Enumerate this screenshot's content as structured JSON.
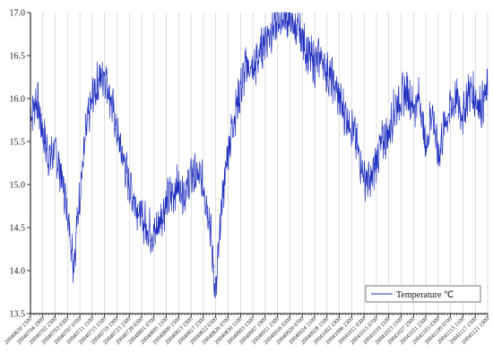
{
  "chart_data": {
    "type": "line",
    "title": "",
    "xlabel": "",
    "ylabel": "",
    "ylim": [
      13.5,
      17.0
    ],
    "yticks": [
      13.5,
      14.0,
      14.5,
      15.0,
      15.5,
      16.0,
      16.5,
      17.0
    ],
    "grid": "vertical",
    "legend_position": "bottom-right",
    "x_tick_labels": [
      "20040630 1500",
      "20040704 1900",
      "20040702 2300",
      "20040703 0300",
      "20040707 0700",
      "20040711 1100",
      "20040715 1500",
      "20040719 1900",
      "20040723 2300",
      "20040728 0300",
      "20040801 0700",
      "20040805 1100",
      "20040809 1500",
      "20040813 1900",
      "20040817 2300",
      "20040822 0300",
      "20040826 0700",
      "20040830 1100",
      "20040903 1500",
      "20040907 1900",
      "20040911 2300",
      "20040916 0300",
      "20040920 0700",
      "20040924 1100",
      "20040928 1500",
      "20041002 1900",
      "20041006 2300",
      "20041011 0300",
      "20041015 0700",
      "20041019 1100",
      "20041023 1500",
      "20041027 1900",
      "20041031 2300",
      "20041105 0300",
      "20041109 0700",
      "20041113 1100",
      "20041117 1500",
      "20041121 1900"
    ],
    "series": [
      {
        "name": "Temperature ℃",
        "color": "#1f2fbf",
        "x_range": [
          0,
          37
        ],
        "values": [
          15.8,
          16.0,
          15.6,
          15.3,
          15.4,
          15.1,
          14.7,
          14.1,
          14.9,
          15.6,
          16.0,
          16.2,
          16.3,
          16.0,
          15.6,
          15.3,
          15.0,
          14.8,
          14.6,
          14.5,
          14.4,
          14.6,
          14.8,
          14.9,
          15.0,
          14.9,
          15.1,
          15.1,
          15.0,
          14.6,
          13.7,
          14.8,
          15.4,
          15.8,
          16.1,
          16.4,
          16.3,
          16.5,
          16.7,
          16.8,
          16.9,
          17.0,
          16.9,
          16.8,
          16.7,
          16.5,
          16.4,
          16.5,
          16.3,
          16.2,
          16.0,
          15.8,
          15.7,
          15.4,
          15.1,
          15.0,
          15.3,
          15.5,
          15.6,
          15.9,
          16.0,
          16.1,
          15.9,
          16.0,
          15.4,
          15.9,
          15.3,
          15.7,
          15.9,
          16.0,
          15.8,
          16.1,
          16.0,
          15.9,
          16.1
        ]
      }
    ]
  }
}
